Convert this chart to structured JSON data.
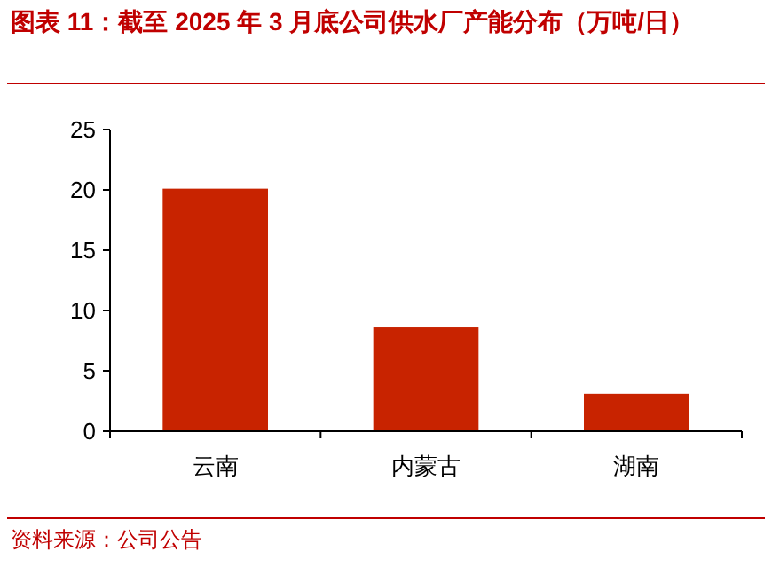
{
  "chart_data": {
    "type": "bar",
    "title": "图表 11：截至 2025 年 3 月底公司供水厂产能分布（万吨/日）",
    "categories": [
      "云南",
      "内蒙古",
      "湖南"
    ],
    "values": [
      20.1,
      8.6,
      3.1
    ],
    "color": "#c82300",
    "ylim": [
      0,
      25
    ],
    "yticks": [
      0,
      5,
      10,
      15,
      20,
      25
    ],
    "annotations": [
      "资料来源：公司公告"
    ]
  }
}
